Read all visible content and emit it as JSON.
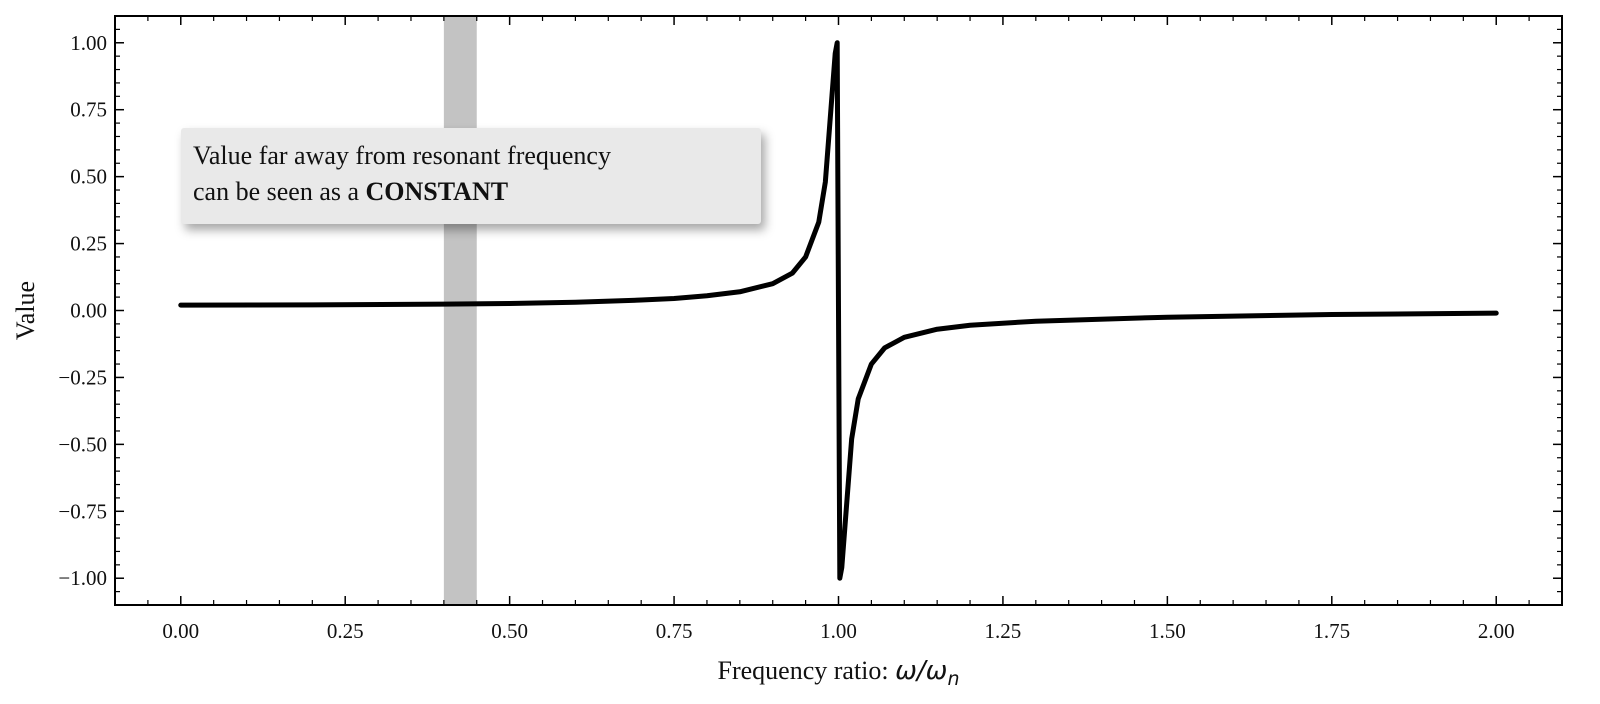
{
  "chart_data": {
    "type": "line",
    "title": "",
    "xlabel": "Frequency ratio: ",
    "xlabel_math": "ω/ω",
    "xlabel_math_sub": "n",
    "ylabel": "Value",
    "xlim": [
      -0.1,
      2.1
    ],
    "ylim": [
      -1.1,
      1.1
    ],
    "xticks": [
      0.0,
      0.25,
      0.5,
      0.75,
      1.0,
      1.25,
      1.5,
      1.75,
      2.0
    ],
    "yticks": [
      -1.0,
      -0.75,
      -0.5,
      -0.25,
      0.0,
      0.25,
      0.5,
      0.75,
      1.0
    ],
    "xtick_labels": [
      "0.00",
      "0.25",
      "0.50",
      "0.75",
      "1.00",
      "1.25",
      "1.50",
      "1.75",
      "2.00"
    ],
    "ytick_labels": [
      "−1.00",
      "−0.75",
      "−0.50",
      "−0.25",
      "0.00",
      "0.25",
      "0.50",
      "0.75",
      "1.00"
    ],
    "grid": false,
    "series": [
      {
        "color": "#000000",
        "x": [
          0.0,
          0.2,
          0.4,
          0.5,
          0.6,
          0.7,
          0.75,
          0.8,
          0.85,
          0.9,
          0.93,
          0.95,
          0.97,
          0.98,
          0.99,
          0.995,
          0.998,
          1.0,
          1.002,
          1.005,
          1.01,
          1.02,
          1.03,
          1.05,
          1.07,
          1.1,
          1.15,
          1.2,
          1.3,
          1.5,
          1.75,
          2.0
        ],
        "y": [
          0.02,
          0.021,
          0.024,
          0.026,
          0.031,
          0.039,
          0.045,
          0.055,
          0.07,
          0.1,
          0.14,
          0.2,
          0.33,
          0.48,
          0.8,
          0.96,
          1.0,
          0.0,
          -1.0,
          -0.96,
          -0.8,
          -0.48,
          -0.33,
          -0.2,
          -0.14,
          -0.1,
          -0.07,
          -0.055,
          -0.04,
          -0.025,
          -0.015,
          -0.01
        ]
      }
    ],
    "highlight_band": {
      "x0": 0.4,
      "x1": 0.45,
      "color": "#bdbdbd"
    },
    "annotation": {
      "line1": "Value far away from resonant frequency",
      "line2_prefix": "can be seen as a ",
      "line2_bold": "CONSTANT"
    }
  }
}
